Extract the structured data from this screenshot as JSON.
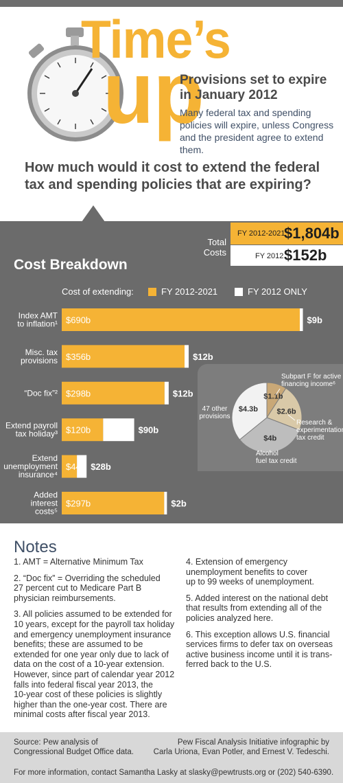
{
  "header": {
    "title_line1": "Time’s",
    "title_line2": "up",
    "subtitle": "Provisions set to expire in January 2012",
    "intro": "Many federal tax and spending policies will expire, unless Congress and the president agree to extend them.",
    "question": "How much would it cost to extend the federal tax and spending policies that are expiring?"
  },
  "totals": {
    "label": "Total Costs",
    "fy1_label": "FY 2012-2021",
    "fy1_value": "$1,804b",
    "fy2_label": "FY 2012",
    "fy2_value": "$152b"
  },
  "colors": {
    "gold": "#f5b335",
    "white": "#ffffff",
    "panel": "#6b6b6b",
    "tan": "#c9a877",
    "lightgray": "#bdbdbd",
    "offwhite": "#f2f2f2"
  },
  "chart_data": [
    {
      "type": "bar",
      "title": "Cost Breakdown",
      "legend_title": "Cost of extending:",
      "series": [
        {
          "name": "FY 2012-2021",
          "values": [
            690,
            356,
            298,
            120,
            44,
            297
          ],
          "labels": [
            "$690b",
            "$356b",
            "$298b",
            "$120b",
            "$44b",
            "$297b"
          ]
        },
        {
          "name": "FY 2012 ONLY",
          "values": [
            9,
            12,
            12,
            90,
            28,
            2
          ],
          "labels": [
            "$9b",
            "$12b",
            "$12b",
            "$90b",
            "$28b",
            "$2b"
          ]
        }
      ],
      "categories": [
        [
          "Index AMT",
          "to inflation¹"
        ],
        [
          "Misc. tax",
          "provisions"
        ],
        [
          "“Doc fix”²"
        ],
        [
          "Extend payroll",
          "tax holiday³"
        ],
        [
          "Extend",
          "unemployment",
          "insurance⁴"
        ],
        [
          "Added",
          "interest",
          "costs⁵"
        ]
      ],
      "xlim": [
        0,
        690
      ]
    },
    {
      "type": "pie",
      "slices": [
        {
          "label": "Subpart F for active financing income⁶",
          "value": 1.1,
          "value_label": "$1.1b",
          "color": "#c9a877"
        },
        {
          "label": "Research & experimentation tax credit",
          "value": 2.6,
          "value_label": "$2.6b",
          "color": "#d9c9a8"
        },
        {
          "label": "Alcohol fuel tax credit",
          "value": 4,
          "value_label": "$4b",
          "color": "#bdbdbd"
        },
        {
          "label": "47 other provisions",
          "value": 4.3,
          "value_label": "$4.3b",
          "color": "#f2f2f2"
        }
      ]
    }
  ],
  "notes": {
    "title": "Notes",
    "left": [
      [
        "1. AMT = Alternative Minimum Tax"
      ],
      [
        "2. “Doc fix” = Overriding the scheduled",
        "27 percent cut to Medicare Part B",
        "physician reimbursements."
      ],
      [
        "3. All policies assumed to be extended for",
        "10 years, except for the payroll tax holiday",
        "and emergency unemployment insurance",
        "benefits; these are assumed to be",
        "extended for one year only due to lack of",
        "data on the cost of a 10-year extension.",
        "However, since part of calendar year 2012",
        "falls into federal fiscal year 2013, the",
        "10-year cost of these policies is slightly",
        "higher than the one-year cost. There are",
        "minimal costs after fiscal year 2013."
      ]
    ],
    "right": [
      [
        "4. Extension of emergency",
        "unemployment benefits to cover",
        "up to 99 weeks of unemployment."
      ],
      [
        "5. Added interest on the national debt",
        "that results from extending all of the",
        "policies analyzed here."
      ],
      [
        "6. This exception allows U.S. financial",
        "services firms to defer tax on overseas",
        "active business income until it is trans-",
        "ferred back to the U.S."
      ]
    ]
  },
  "footer": {
    "source_line1": "Source: Pew analysis of",
    "source_line2": "Congressional Budget Office data.",
    "credit_line1": "Pew Fiscal Analysis Initiative infographic by",
    "credit_line2": "Carla Uriona, Evan Potler, and Ernest V. Tedeschi.",
    "contact": "For more information, contact Samantha Lasky at slasky@pewtrusts.org or (202) 540-6390."
  }
}
